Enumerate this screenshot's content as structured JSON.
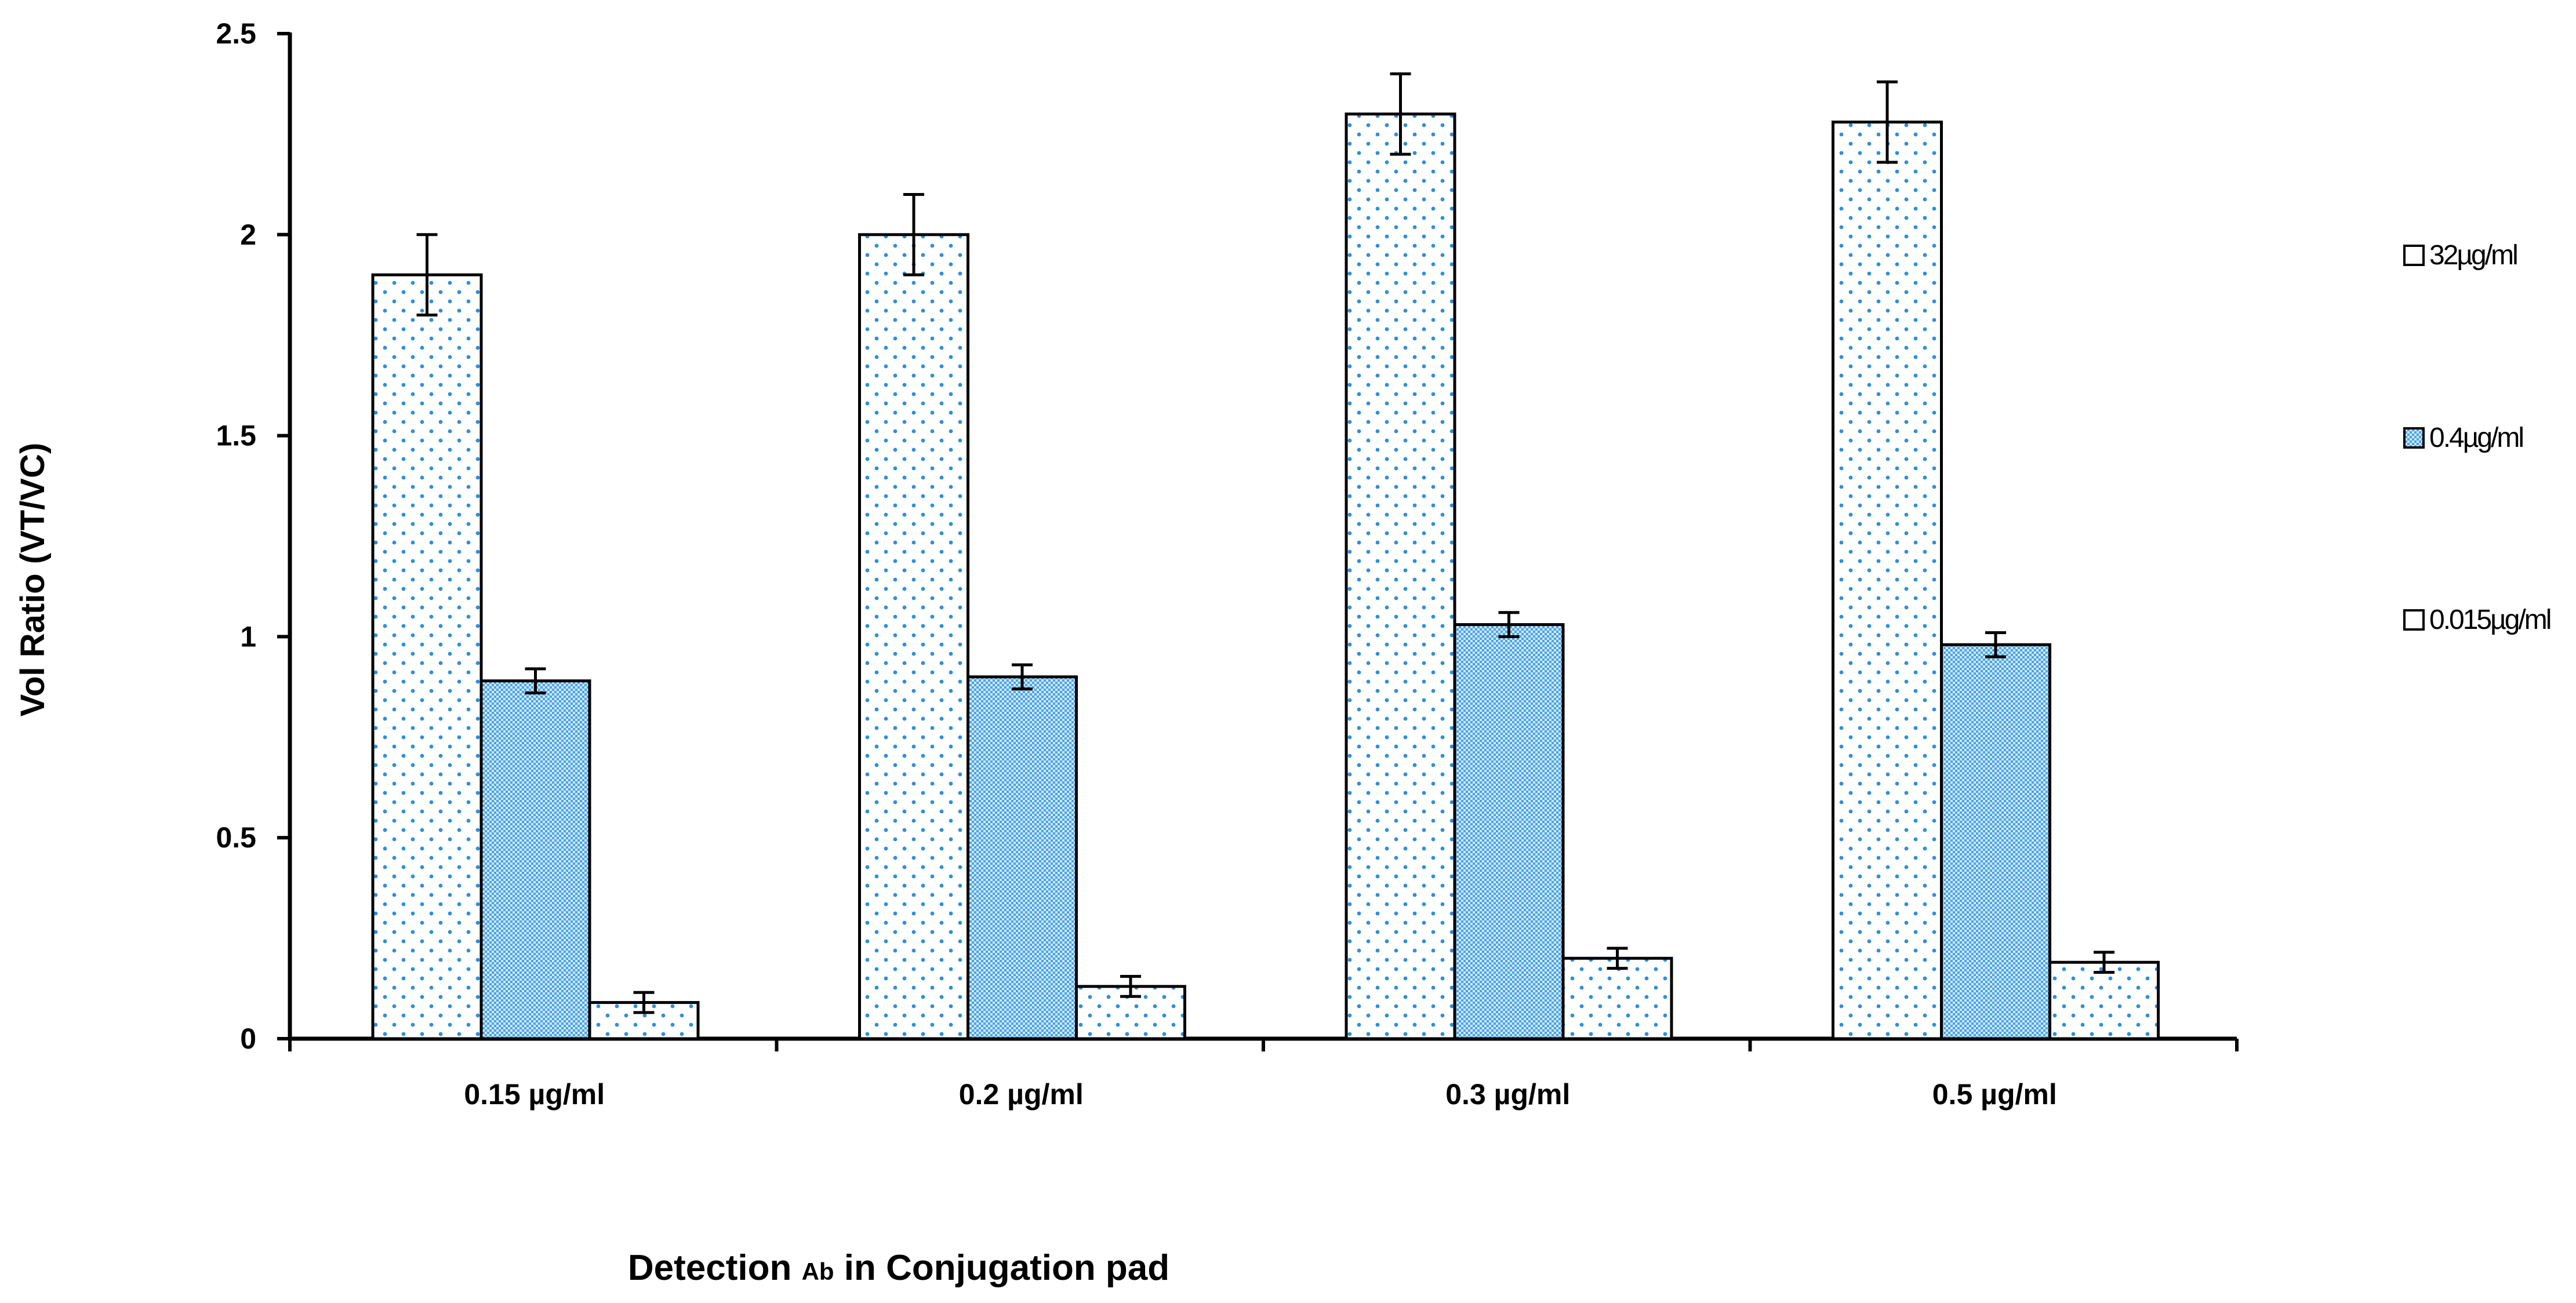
{
  "chart_data": {
    "type": "bar",
    "title": "",
    "ylabel": "Vol Ratio (VT/VC)",
    "xlabel_parts": [
      "Detection ",
      "Ab",
      " in Conjugation pad"
    ],
    "ylim": [
      0,
      2.5
    ],
    "yticks": [
      "0",
      "0.5",
      "1",
      "1.5",
      "2",
      "2.5"
    ],
    "ytick_values": [
      0,
      0.5,
      1,
      1.5,
      2,
      2.5
    ],
    "categories": [
      "0.15 µg/ml",
      "0.2 µg/ml",
      "0.3 µg/ml",
      "0.5 µg/ml"
    ],
    "legend_position": "right",
    "series": [
      {
        "name": "32µg/ml",
        "pattern": "dots",
        "fill": "#ffffff",
        "dot_color": "#2f8fd8",
        "values": [
          1.9,
          2.0,
          2.3,
          2.28
        ],
        "errors": [
          0.1,
          0.1,
          0.1,
          0.1
        ]
      },
      {
        "name": "0.4µg/ml",
        "pattern": "checker",
        "fill": "#5aaee8",
        "dot_color": "#d6ecfa",
        "values": [
          0.89,
          0.9,
          1.03,
          0.98
        ],
        "errors": [
          0.03,
          0.03,
          0.03,
          0.03
        ]
      },
      {
        "name": "0.015µg/ml",
        "pattern": "dots",
        "fill": "#ffffff",
        "dot_color": "#2f8fd8",
        "values": [
          0.09,
          0.13,
          0.2,
          0.19
        ],
        "errors": [
          0.025,
          0.025,
          0.025,
          0.025
        ]
      }
    ]
  }
}
